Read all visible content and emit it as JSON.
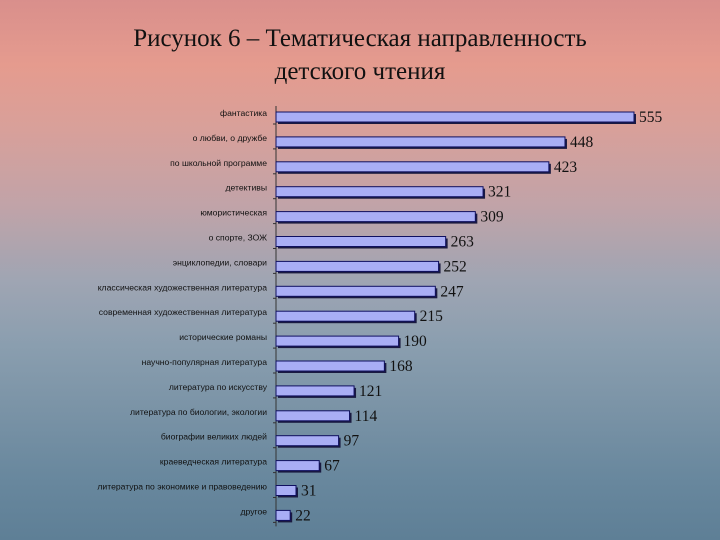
{
  "title_line1": "Рисунок 6 – Тематическая направленность",
  "title_line2": "детского чтения",
  "chart_data": {
    "type": "bar",
    "orientation": "horizontal",
    "categories": [
      "фантастика",
      "о любви, о дружбе",
      "по школьной программе",
      "детективы",
      "юмористическая",
      "о спорте, ЗОЖ",
      "энциклопедии, словари",
      "классическая художественная литература",
      "современная художественная литература",
      "исторические романы",
      "научно-популярная литература",
      "литература по искусству",
      "литература по биологии, экологии",
      "биографии великих людей",
      "краеведческая литература",
      "литература по экономике и правоведению",
      "другое"
    ],
    "values": [
      555,
      448,
      423,
      321,
      309,
      263,
      252,
      247,
      215,
      190,
      168,
      121,
      114,
      97,
      67,
      31,
      22
    ],
    "xlim": [
      0,
      555
    ],
    "grid": false,
    "legend": "none",
    "bar_color": "#a9aef5",
    "bar_border": "#101060"
  }
}
